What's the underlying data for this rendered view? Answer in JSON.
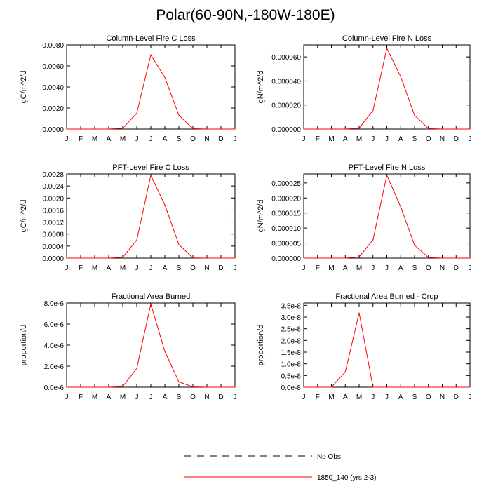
{
  "title": "Polar(60-90N,-180W-180E)",
  "colors": {
    "model_line": "#ff0000",
    "obs_line": "#000000",
    "axes": "#000000"
  },
  "legend": {
    "placement": "bottom-center",
    "entries": [
      {
        "label": "No Obs",
        "style": "dashed",
        "color": "#000000"
      },
      {
        "label": "1850_140 (yrs 2-3)",
        "style": "solid",
        "color": "#ff0000"
      }
    ]
  },
  "chart_data": [
    {
      "type": "line",
      "title": "Column-Level Fire C Loss",
      "ylabel": "gC/m^2/d",
      "xlabel": "",
      "categories": [
        "J",
        "F",
        "M",
        "A",
        "M",
        "J",
        "J",
        "A",
        "S",
        "O",
        "N",
        "D",
        "J"
      ],
      "ylim": [
        0,
        0.008
      ],
      "yticks": [
        0,
        0.002,
        0.004,
        0.006,
        0.008
      ],
      "yticklabels": [
        "0.0000",
        "0.0020",
        "0.0040",
        "0.0060",
        "0.0080"
      ],
      "series": [
        {
          "name": "1850_140 (yrs 2-3)",
          "values": [
            0,
            0,
            0,
            0,
            8e-05,
            0.00152,
            0.00705,
            0.0049,
            0.00132,
            4e-05,
            0,
            0,
            0
          ]
        }
      ]
    },
    {
      "type": "line",
      "title": "Column-Level Fire N Loss",
      "ylabel": "gN/m^2/d",
      "xlabel": "",
      "categories": [
        "J",
        "F",
        "M",
        "A",
        "M",
        "J",
        "J",
        "A",
        "S",
        "O",
        "N",
        "D",
        "J"
      ],
      "ylim": [
        0,
        7e-05
      ],
      "yticks": [
        0,
        2e-05,
        4e-05,
        6e-05
      ],
      "yticklabels": [
        "0.000000",
        "0.000020",
        "0.000040",
        "0.000060"
      ],
      "series": [
        {
          "name": "1850_140 (yrs 2-3)",
          "values": [
            0,
            0,
            0,
            0,
            8e-07,
            1.55e-05,
            6.72e-05,
            4.35e-05,
            1.15e-05,
            4e-07,
            0,
            0,
            0
          ]
        }
      ]
    },
    {
      "type": "line",
      "title": "PFT-Level Fire C Loss",
      "ylabel": "gC/m^2/d",
      "xlabel": "",
      "categories": [
        "J",
        "F",
        "M",
        "A",
        "M",
        "J",
        "J",
        "A",
        "S",
        "O",
        "N",
        "D",
        "J"
      ],
      "ylim": [
        0,
        0.0028
      ],
      "yticks": [
        0,
        0.0004,
        0.0008,
        0.0012,
        0.0016,
        0.002,
        0.0024,
        0.0028
      ],
      "yticklabels": [
        "0.0000",
        "0.0004",
        "0.0008",
        "0.0012",
        "0.0016",
        "0.0020",
        "0.0024",
        "0.0028"
      ],
      "series": [
        {
          "name": "1850_140 (yrs 2-3)",
          "values": [
            0,
            0,
            0,
            0,
            3e-05,
            0.0006,
            0.00275,
            0.00177,
            0.00045,
            1e-05,
            0,
            0,
            0
          ]
        }
      ]
    },
    {
      "type": "line",
      "title": "PFT-Level Fire N Loss",
      "ylabel": "gN/m^2/d",
      "xlabel": "",
      "categories": [
        "J",
        "F",
        "M",
        "A",
        "M",
        "J",
        "J",
        "A",
        "S",
        "O",
        "N",
        "D",
        "J"
      ],
      "ylim": [
        0,
        2.8e-05
      ],
      "yticks": [
        0,
        5e-06,
        1e-05,
        1.5e-05,
        2e-05,
        2.5e-05
      ],
      "yticklabels": [
        "0.000000",
        "0.000005",
        "0.000010",
        "0.000015",
        "0.000020",
        "0.000025"
      ],
      "series": [
        {
          "name": "1850_140 (yrs 2-3)",
          "values": [
            0,
            0,
            0,
            0,
            4e-07,
            6.1e-06,
            2.76e-05,
            1.7e-05,
            4.3e-06,
            2e-07,
            0,
            0,
            0
          ]
        }
      ]
    },
    {
      "type": "line",
      "title": "Fractional Area Burned",
      "ylabel": "proportion/d",
      "xlabel": "",
      "categories": [
        "J",
        "F",
        "M",
        "A",
        "M",
        "J",
        "J",
        "A",
        "S",
        "O",
        "N",
        "D",
        "J"
      ],
      "ylim": [
        0,
        8e-06
      ],
      "yticks": [
        0,
        2e-06,
        4e-06,
        6e-06,
        8e-06
      ],
      "yticklabels": [
        "0.0e-6",
        "2.0e-6",
        "4.0e-6",
        "6.0e-6",
        "8.0e-6"
      ],
      "series": [
        {
          "name": "1850_140 (yrs 2-3)",
          "values": [
            0,
            0,
            0,
            0,
            7e-08,
            1.8e-06,
            7.9e-06,
            3.4e-06,
            5e-07,
            3e-08,
            0,
            0,
            0
          ]
        }
      ]
    },
    {
      "type": "line",
      "title": "Fractional Area Burned - Crop",
      "ylabel": "proportion/d",
      "xlabel": "",
      "categories": [
        "J",
        "F",
        "M",
        "A",
        "M",
        "J",
        "J",
        "A",
        "S",
        "O",
        "N",
        "D",
        "J"
      ],
      "ylim": [
        0,
        3.6e-08
      ],
      "yticks": [
        0,
        5e-09,
        1e-08,
        1.5e-08,
        2e-08,
        2.5e-08,
        3e-08,
        3.5e-08
      ],
      "yticklabels": [
        "0.0e-8",
        "0.5e-8",
        "1.0e-8",
        "1.5e-8",
        "2.0e-8",
        "2.5e-8",
        "3.0e-8",
        "3.5e-8"
      ],
      "series": [
        {
          "name": "1850_140 (yrs 2-3)",
          "values": [
            0,
            0,
            0,
            6.5e-09,
            3.18e-08,
            0,
            0,
            0,
            0,
            0,
            0,
            0,
            0
          ]
        }
      ]
    }
  ]
}
